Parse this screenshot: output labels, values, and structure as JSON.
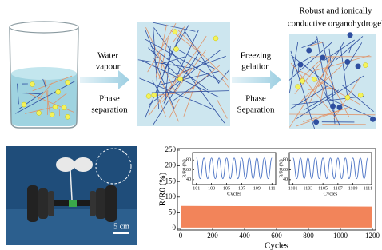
{
  "schematic": {
    "title_lines": [
      "Robust and ionically",
      "conductive organohydrogel"
    ],
    "step1_lines": [
      "Water",
      "vapour"
    ],
    "step1b_lines": [
      "Phase",
      "separation"
    ],
    "step2_lines": [
      "Freezing",
      "gelation"
    ],
    "step2b_lines": [
      "Phase",
      "Separation"
    ]
  },
  "photo": {
    "scale_bar": "5 cm"
  },
  "chart_data": [
    {
      "type": "area",
      "xlabel": "Cycles",
      "ylabel": "R/R0 (%)",
      "x": [
        0,
        1200
      ],
      "values": [
        72,
        70
      ],
      "lower": [
        3,
        3
      ],
      "color": "#f2845a",
      "xlim": [
        -20,
        1220
      ],
      "xticks": [
        0,
        200,
        400,
        600,
        800,
        1000,
        1200
      ],
      "ylim": [
        -5,
        255
      ],
      "yticks": [
        0,
        50,
        100,
        150,
        200,
        250
      ]
    },
    {
      "type": "line",
      "xlabel": "Cycles",
      "ylabel": "R/R0 (%)",
      "color": "#4a72c4",
      "x": [
        101,
        101.5,
        102,
        102.5,
        103,
        103.5,
        104,
        104.5,
        105,
        105.5,
        106,
        106.5,
        107,
        107.5,
        108,
        108.5,
        109,
        109.5,
        110,
        110.5,
        111
      ],
      "values": [
        84,
        42,
        84,
        42,
        84,
        42,
        84,
        42,
        84,
        42,
        84,
        42,
        84,
        42,
        84,
        42,
        84,
        42,
        84,
        42,
        84
      ],
      "xlim": [
        100.5,
        111.5
      ],
      "xticks": [
        101,
        103,
        105,
        107,
        109,
        111
      ],
      "ylim": [
        30,
        95
      ],
      "yticks": [
        40,
        60,
        80
      ]
    },
    {
      "type": "line",
      "xlabel": "Cycles",
      "ylabel": "R/R0 (%)",
      "color": "#4a72c4",
      "x": [
        1101,
        1101.5,
        1102,
        1102.5,
        1103,
        1103.5,
        1104,
        1104.5,
        1105,
        1105.5,
        1106,
        1106.5,
        1107,
        1107.5,
        1108,
        1108.5,
        1109,
        1109.5,
        1110,
        1110.5,
        1111
      ],
      "values": [
        84,
        42,
        84,
        42,
        84,
        42,
        84,
        42,
        84,
        42,
        84,
        42,
        84,
        42,
        84,
        42,
        84,
        42,
        84,
        42,
        84
      ],
      "xlim": [
        1100.5,
        1111.5
      ],
      "xticks": [
        1101,
        1103,
        1105,
        1107,
        1109,
        1111
      ],
      "ylim": [
        30,
        95
      ],
      "yticks": [
        40,
        60,
        80
      ]
    }
  ]
}
